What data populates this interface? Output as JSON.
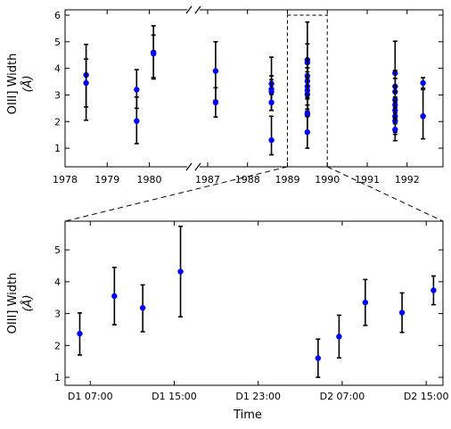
{
  "chart_data": [
    {
      "id": "overview",
      "type": "scatter",
      "title": "",
      "xlabel": "",
      "ylabel": "OIII] Width",
      "ylabel_unit": "(Å)",
      "ylim": [
        0.3,
        6.2
      ],
      "yticks": [
        1,
        2,
        3,
        4,
        5,
        6
      ],
      "broken_x_axis": true,
      "segments": [
        {
          "xlim": [
            1978,
            1980.9
          ],
          "xticks": [
            1978,
            1979,
            1980
          ]
        },
        {
          "xlim": [
            1986.8,
            1992.9
          ],
          "xticks": [
            1987,
            1988,
            1989,
            1990,
            1991,
            1992
          ]
        }
      ],
      "grid": false,
      "zoom_box": {
        "x": [
          1989,
          1990
        ],
        "y": [
          0.3,
          6.0
        ]
      },
      "points": [
        {
          "x": 1978.5,
          "y": 3.75,
          "err": [
            1.7,
            1.15
          ]
        },
        {
          "x": 1978.5,
          "y": 3.45,
          "err": [
            0.9,
            0.9
          ]
        },
        {
          "x": 1979.7,
          "y": 3.2,
          "err": [
            0.7,
            0.75
          ]
        },
        {
          "x": 1979.7,
          "y": 2.02,
          "err": [
            0.85,
            0.9
          ]
        },
        {
          "x": 1980.1,
          "y": 4.6,
          "err": [
            1.0,
            1.0
          ]
        },
        {
          "x": 1980.1,
          "y": 4.55,
          "err": [
            0.9,
            0.7
          ]
        },
        {
          "x": 1987.2,
          "y": 3.9,
          "err": [
            1.1,
            1.1
          ]
        },
        {
          "x": 1987.2,
          "y": 2.72,
          "err": [
            0.55,
            0.55
          ]
        },
        {
          "x": 1988.6,
          "y": 3.42,
          "err": [
            1.0,
            1.0
          ]
        },
        {
          "x": 1988.6,
          "y": 3.22,
          "err": [
            0.5,
            0.5
          ]
        },
        {
          "x": 1988.6,
          "y": 3.12,
          "err": [
            0.45,
            0.45
          ]
        },
        {
          "x": 1988.6,
          "y": 2.72,
          "err": [
            0.3,
            0.3
          ]
        },
        {
          "x": 1988.6,
          "y": 1.3,
          "err": [
            0.55,
            0.9
          ]
        },
        {
          "x": 1989.5,
          "y": 4.32,
          "err": [
            1.42,
            1.42
          ]
        },
        {
          "x": 1989.5,
          "y": 4.22,
          "err": [
            0.7,
            0.7
          ]
        },
        {
          "x": 1989.5,
          "y": 3.72,
          "err": [
            0.6,
            0.6
          ]
        },
        {
          "x": 1989.5,
          "y": 3.52,
          "err": [
            0.5,
            0.5
          ]
        },
        {
          "x": 1989.5,
          "y": 3.32,
          "err": [
            0.7,
            0.7
          ]
        },
        {
          "x": 1989.5,
          "y": 3.17,
          "err": [
            0.7,
            0.7
          ]
        },
        {
          "x": 1989.5,
          "y": 3.02,
          "err": [
            0.62,
            0.62
          ]
        },
        {
          "x": 1989.5,
          "y": 2.32,
          "err": [
            0.7,
            0.7
          ]
        },
        {
          "x": 1989.5,
          "y": 2.25,
          "err": [
            0.6,
            0.6
          ]
        },
        {
          "x": 1989.5,
          "y": 1.6,
          "err": [
            0.6,
            0.6
          ]
        },
        {
          "x": 1991.7,
          "y": 3.82,
          "err": [
            1.2,
            1.2
          ]
        },
        {
          "x": 1991.7,
          "y": 3.32,
          "err": [
            0.6,
            0.6
          ]
        },
        {
          "x": 1991.7,
          "y": 3.12,
          "err": [
            0.5,
            0.5
          ]
        },
        {
          "x": 1991.7,
          "y": 2.82,
          "err": [
            0.5,
            0.5
          ]
        },
        {
          "x": 1991.7,
          "y": 2.62,
          "err": [
            0.5,
            0.5
          ]
        },
        {
          "x": 1991.7,
          "y": 2.42,
          "err": [
            0.5,
            0.5
          ]
        },
        {
          "x": 1991.7,
          "y": 2.2,
          "err": [
            0.6,
            0.6
          ]
        },
        {
          "x": 1991.7,
          "y": 2.02,
          "err": [
            0.5,
            0.5
          ]
        },
        {
          "x": 1991.7,
          "y": 1.7,
          "err": [
            0.42,
            0.42
          ]
        },
        {
          "x": 1992.4,
          "y": 3.45,
          "err": [
            0.2,
            0.2
          ]
        },
        {
          "x": 1992.4,
          "y": 2.2,
          "err": [
            0.85,
            1.0
          ]
        }
      ]
    },
    {
      "id": "zoom",
      "type": "scatter",
      "title": "",
      "xlabel": "Time",
      "ylabel": "OIII] Width",
      "ylabel_unit": "(Å)",
      "ylim": [
        0.75,
        5.9
      ],
      "yticks": [
        1,
        2,
        3,
        4,
        5
      ],
      "xlim_hours": [
        4.6,
        40.6
      ],
      "xticks": [
        {
          "hour": 7,
          "label": "D1 07:00"
        },
        {
          "hour": 15,
          "label": "D1 15:00"
        },
        {
          "hour": 23,
          "label": "D1 23:00"
        },
        {
          "hour": 31,
          "label": "D2 07:00"
        },
        {
          "hour": 39,
          "label": "D2 15:00"
        }
      ],
      "grid": false,
      "points": [
        {
          "x": 6.0,
          "y": 2.37,
          "err": [
            0.67,
            0.65
          ]
        },
        {
          "x": 9.3,
          "y": 3.55,
          "err": [
            0.9,
            0.9
          ]
        },
        {
          "x": 12.0,
          "y": 3.18,
          "err": [
            0.75,
            0.72
          ]
        },
        {
          "x": 15.6,
          "y": 4.32,
          "err": [
            1.42,
            1.42
          ]
        },
        {
          "x": 28.7,
          "y": 1.6,
          "err": [
            0.6,
            0.6
          ]
        },
        {
          "x": 30.7,
          "y": 2.28,
          "err": [
            0.67,
            0.67
          ]
        },
        {
          "x": 33.2,
          "y": 3.35,
          "err": [
            0.72,
            0.72
          ]
        },
        {
          "x": 36.7,
          "y": 3.03,
          "err": [
            0.62,
            0.62
          ]
        },
        {
          "x": 39.7,
          "y": 3.73,
          "err": [
            0.45,
            0.45
          ]
        }
      ]
    }
  ]
}
